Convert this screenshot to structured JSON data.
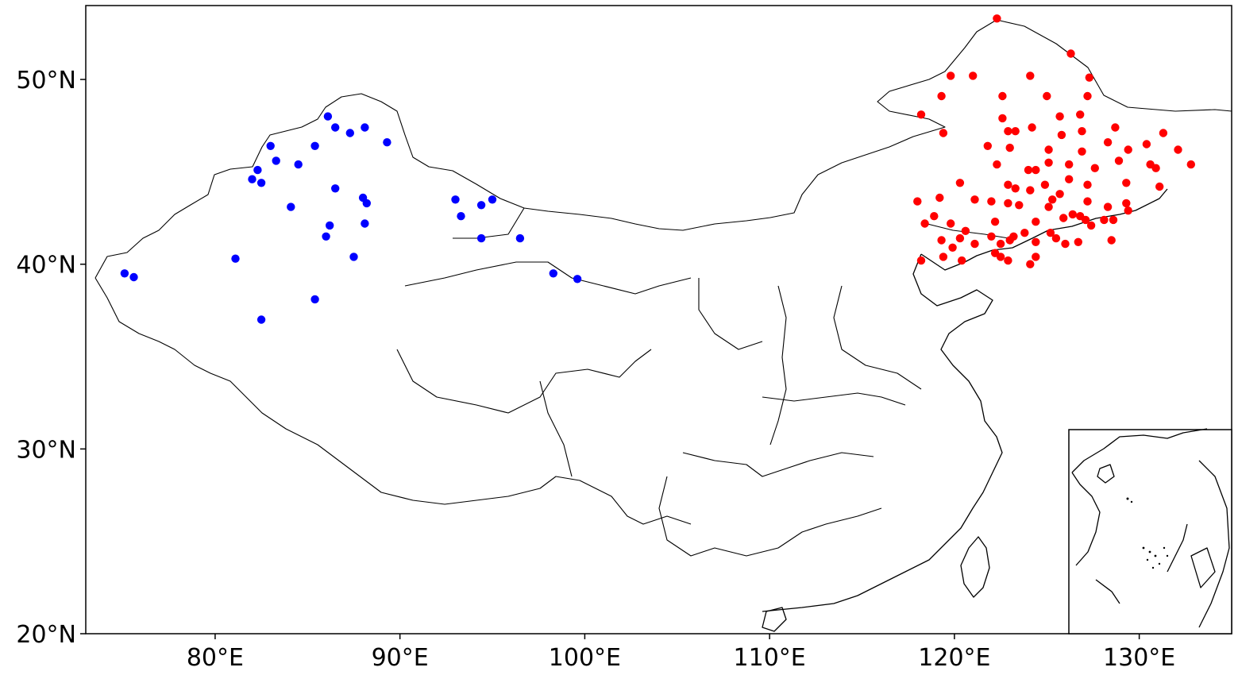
{
  "chart_data": {
    "type": "scatter",
    "title": "",
    "xlabel": "",
    "ylabel": "",
    "xlim": [
      73,
      135
    ],
    "ylim": [
      20,
      54
    ],
    "x_ticks": [
      80,
      90,
      100,
      110,
      120,
      130
    ],
    "x_tick_labels": [
      "80°E",
      "90°E",
      "100°E",
      "110°E",
      "120°E",
      "130°E"
    ],
    "y_ticks": [
      20,
      30,
      40,
      50
    ],
    "y_tick_labels": [
      "20°N",
      "30°N",
      "40°N",
      "50°N"
    ],
    "grid": false,
    "inset": "South China Sea, bottom-right",
    "series": [
      {
        "color": "#0000ff",
        "points": [
          [
            86.1,
            48.0
          ],
          [
            86.5,
            47.4
          ],
          [
            87.3,
            47.1
          ],
          [
            88.1,
            47.4
          ],
          [
            89.3,
            46.6
          ],
          [
            83.0,
            46.4
          ],
          [
            85.4,
            46.4
          ],
          [
            83.3,
            45.6
          ],
          [
            84.5,
            45.4
          ],
          [
            82.3,
            45.1
          ],
          [
            82.0,
            44.6
          ],
          [
            82.5,
            44.4
          ],
          [
            86.5,
            44.1
          ],
          [
            84.1,
            43.1
          ],
          [
            88.0,
            43.6
          ],
          [
            88.2,
            43.3
          ],
          [
            88.1,
            42.2
          ],
          [
            86.2,
            42.1
          ],
          [
            86.0,
            41.5
          ],
          [
            87.5,
            40.4
          ],
          [
            81.1,
            40.3
          ],
          [
            75.1,
            39.5
          ],
          [
            75.6,
            39.3
          ],
          [
            85.4,
            38.1
          ],
          [
            82.5,
            37.0
          ],
          [
            93.0,
            43.5
          ],
          [
            93.3,
            42.6
          ],
          [
            94.4,
            43.2
          ],
          [
            95.0,
            43.5
          ],
          [
            94.4,
            41.4
          ],
          [
            96.5,
            41.4
          ],
          [
            98.3,
            39.5
          ],
          [
            99.6,
            39.2
          ]
        ]
      },
      {
        "color": "#ff0000",
        "points": [
          [
            122.3,
            53.3
          ],
          [
            126.3,
            51.4
          ],
          [
            119.8,
            50.2
          ],
          [
            121.0,
            50.2
          ],
          [
            124.1,
            50.2
          ],
          [
            127.3,
            50.1
          ],
          [
            119.3,
            49.1
          ],
          [
            122.6,
            49.1
          ],
          [
            125.0,
            49.1
          ],
          [
            127.2,
            49.1
          ],
          [
            118.2,
            48.1
          ],
          [
            122.6,
            47.9
          ],
          [
            125.7,
            48.0
          ],
          [
            126.8,
            48.1
          ],
          [
            119.4,
            47.1
          ],
          [
            122.9,
            47.2
          ],
          [
            123.3,
            47.2
          ],
          [
            124.2,
            47.4
          ],
          [
            125.8,
            47.0
          ],
          [
            126.9,
            47.2
          ],
          [
            128.7,
            47.4
          ],
          [
            131.3,
            47.1
          ],
          [
            121.8,
            46.4
          ],
          [
            123.0,
            46.3
          ],
          [
            125.1,
            46.2
          ],
          [
            126.9,
            46.1
          ],
          [
            128.3,
            46.6
          ],
          [
            129.4,
            46.2
          ],
          [
            130.4,
            46.5
          ],
          [
            132.1,
            46.2
          ],
          [
            122.3,
            45.4
          ],
          [
            124.0,
            45.1
          ],
          [
            124.4,
            45.1
          ],
          [
            125.1,
            45.5
          ],
          [
            126.2,
            45.4
          ],
          [
            127.6,
            45.2
          ],
          [
            128.9,
            45.6
          ],
          [
            130.6,
            45.4
          ],
          [
            130.9,
            45.2
          ],
          [
            132.8,
            45.4
          ],
          [
            119.2,
            43.6
          ],
          [
            120.3,
            44.4
          ],
          [
            121.1,
            43.5
          ],
          [
            122.0,
            43.4
          ],
          [
            122.9,
            44.3
          ],
          [
            123.3,
            44.1
          ],
          [
            124.1,
            44.0
          ],
          [
            124.9,
            44.3
          ],
          [
            125.7,
            43.8
          ],
          [
            126.2,
            44.6
          ],
          [
            127.2,
            44.3
          ],
          [
            129.3,
            44.4
          ],
          [
            131.1,
            44.2
          ],
          [
            118.0,
            43.4
          ],
          [
            118.4,
            42.2
          ],
          [
            118.9,
            42.6
          ],
          [
            119.8,
            42.2
          ],
          [
            120.6,
            41.8
          ],
          [
            122.2,
            42.3
          ],
          [
            122.9,
            43.3
          ],
          [
            123.5,
            43.2
          ],
          [
            124.4,
            42.3
          ],
          [
            125.1,
            43.1
          ],
          [
            125.3,
            43.5
          ],
          [
            125.9,
            42.5
          ],
          [
            126.4,
            42.7
          ],
          [
            126.8,
            42.6
          ],
          [
            127.2,
            43.4
          ],
          [
            128.3,
            43.1
          ],
          [
            129.3,
            43.3
          ],
          [
            128.1,
            42.4
          ],
          [
            128.6,
            42.4
          ],
          [
            129.4,
            42.9
          ],
          [
            119.3,
            41.3
          ],
          [
            119.9,
            40.9
          ],
          [
            120.3,
            41.4
          ],
          [
            121.1,
            41.1
          ],
          [
            122.0,
            41.5
          ],
          [
            122.5,
            41.1
          ],
          [
            123.0,
            41.3
          ],
          [
            123.2,
            41.5
          ],
          [
            123.8,
            41.7
          ],
          [
            124.4,
            41.2
          ],
          [
            125.2,
            41.7
          ],
          [
            125.5,
            41.4
          ],
          [
            126.0,
            41.1
          ],
          [
            127.1,
            42.4
          ],
          [
            127.4,
            42.1
          ],
          [
            128.5,
            41.3
          ],
          [
            118.2,
            40.2
          ],
          [
            119.4,
            40.4
          ],
          [
            120.4,
            40.2
          ],
          [
            122.2,
            40.6
          ],
          [
            122.5,
            40.4
          ],
          [
            122.9,
            40.2
          ],
          [
            124.1,
            40.0
          ],
          [
            124.4,
            40.4
          ],
          [
            126.7,
            41.2
          ]
        ]
      }
    ]
  }
}
